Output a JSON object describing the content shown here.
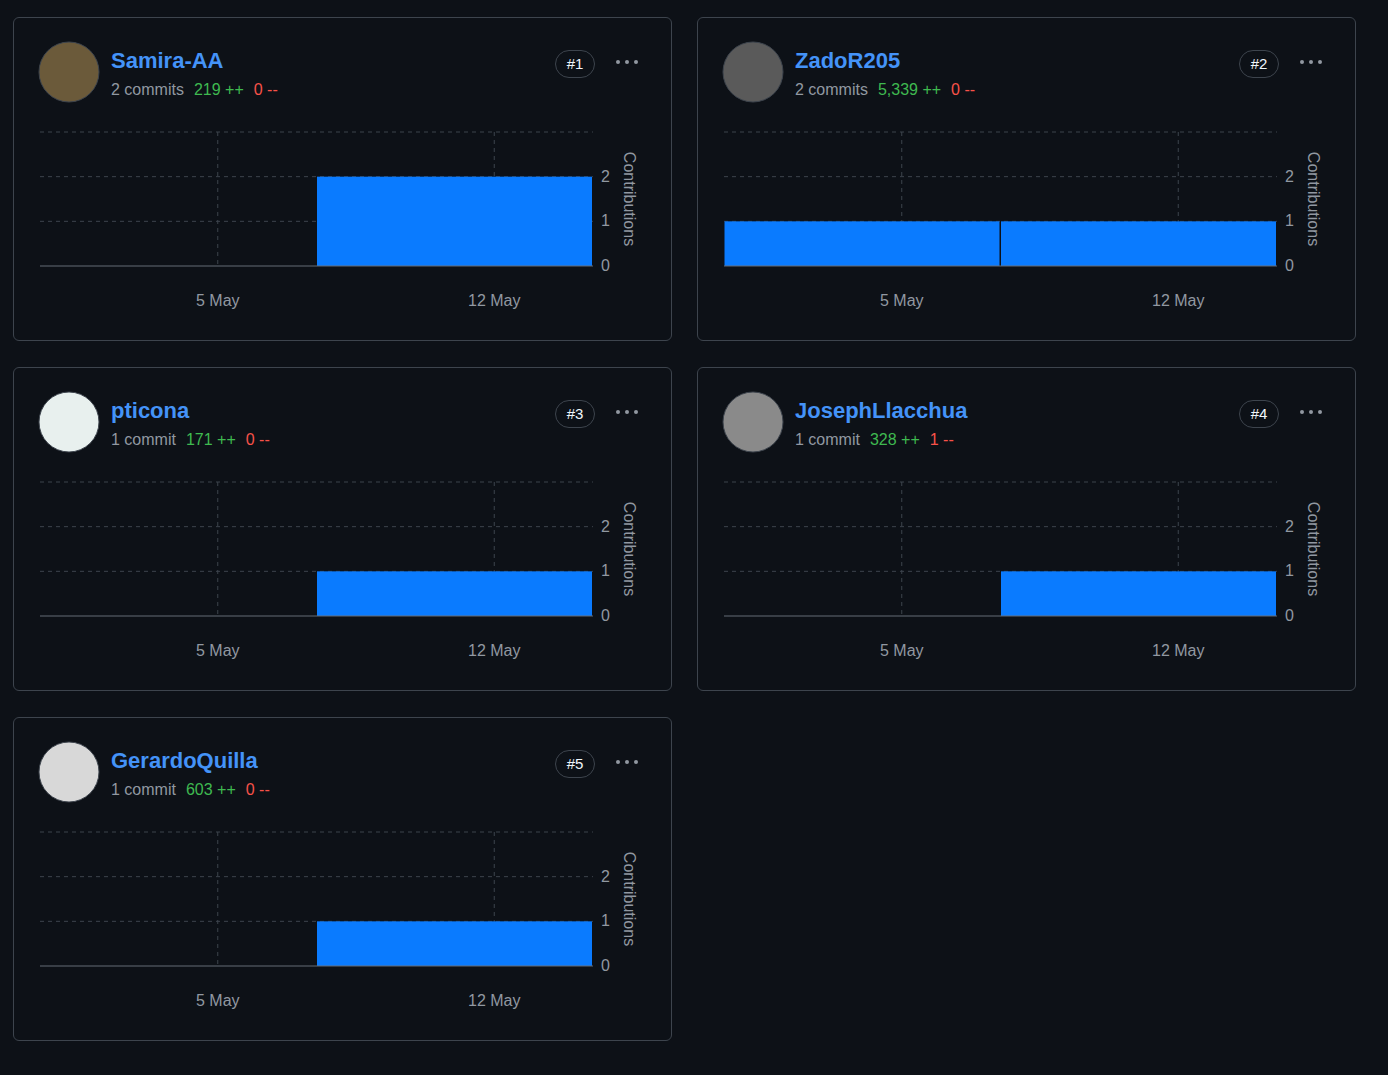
{
  "chart_data": [
    {
      "type": "histogram",
      "title": "Samira-AA",
      "rank": "#1",
      "commits": "2 commits",
      "additions": "219 ++",
      "deletions": "0 --",
      "y_label": "Contributions",
      "bins": [
        0.5,
        7.5,
        14.5
      ],
      "values": [
        0,
        2
      ],
      "color": "#0a7bff",
      "xlim": [
        0.5,
        14.5
      ],
      "xticks": [
        {
          "value": 5,
          "label": "5 May"
        },
        {
          "value": 12,
          "label": "12 May"
        }
      ],
      "ylim": [
        0,
        3
      ],
      "yticks": [
        0,
        1,
        2
      ],
      "grid": true
    },
    {
      "type": "histogram",
      "title": "ZadoR205",
      "rank": "#2",
      "commits": "2 commits",
      "additions": "5,339 ++",
      "deletions": "0 --",
      "y_label": "Contributions",
      "bins": [
        0.5,
        7.5,
        14.5
      ],
      "values": [
        1,
        1
      ],
      "color": "#0a7bff",
      "xlim": [
        0.5,
        14.5
      ],
      "xticks": [
        {
          "value": 5,
          "label": "5 May"
        },
        {
          "value": 12,
          "label": "12 May"
        }
      ],
      "ylim": [
        0,
        3
      ],
      "yticks": [
        0,
        1,
        2
      ],
      "grid": true
    },
    {
      "type": "histogram",
      "title": "pticona",
      "rank": "#3",
      "commits": "1 commit",
      "additions": "171 ++",
      "deletions": "0 --",
      "y_label": "Contributions",
      "bins": [
        0.5,
        7.5,
        14.5
      ],
      "values": [
        0,
        1
      ],
      "color": "#0a7bff",
      "xlim": [
        0.5,
        14.5
      ],
      "xticks": [
        {
          "value": 5,
          "label": "5 May"
        },
        {
          "value": 12,
          "label": "12 May"
        }
      ],
      "ylim": [
        0,
        3
      ],
      "yticks": [
        0,
        1,
        2
      ],
      "grid": true
    },
    {
      "type": "histogram",
      "title": "JosephLlacchua",
      "rank": "#4",
      "commits": "1 commit",
      "additions": "328 ++",
      "deletions": "1 --",
      "y_label": "Contributions",
      "bins": [
        0.5,
        7.5,
        14.5
      ],
      "values": [
        0,
        1
      ],
      "color": "#0a7bff",
      "xlim": [
        0.5,
        14.5
      ],
      "xticks": [
        {
          "value": 5,
          "label": "5 May"
        },
        {
          "value": 12,
          "label": "12 May"
        }
      ],
      "ylim": [
        0,
        3
      ],
      "yticks": [
        0,
        1,
        2
      ],
      "grid": true
    },
    {
      "type": "histogram",
      "title": "GerardoQuilla",
      "rank": "#5",
      "commits": "1 commit",
      "additions": "603 ++",
      "deletions": "0 --",
      "y_label": "Contributions",
      "bins": [
        0.5,
        7.5,
        14.5
      ],
      "values": [
        0,
        1
      ],
      "color": "#0a7bff",
      "xlim": [
        0.5,
        14.5
      ],
      "xticks": [
        {
          "value": 5,
          "label": "5 May"
        },
        {
          "value": 12,
          "label": "12 May"
        }
      ],
      "ylim": [
        0,
        3
      ],
      "yticks": [
        0,
        1,
        2
      ],
      "grid": true
    }
  ]
}
